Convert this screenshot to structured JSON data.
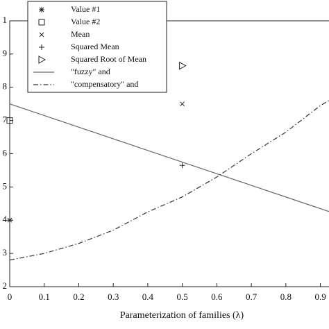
{
  "chart_data": {
    "type": "line",
    "x_label": "Parameterization of families (λ)",
    "xlim": [
      0,
      0.925
    ],
    "ylim": [
      0.2,
      1.0
    ],
    "xticks": [
      0,
      0.1,
      0.2,
      0.3,
      0.4,
      0.5,
      0.6,
      0.7,
      0.8,
      0.9
    ],
    "yticks": [
      {
        "value": 0.2,
        "label": "2"
      },
      {
        "value": 0.3,
        "label": "3"
      },
      {
        "value": 0.4,
        "label": "4"
      },
      {
        "value": 0.5,
        "label": "5"
      },
      {
        "value": 0.6,
        "label": "6"
      },
      {
        "value": 0.7,
        "label": "7"
      },
      {
        "value": 0.8,
        "label": "8"
      },
      {
        "value": 0.9,
        "label": "9"
      },
      1
    ],
    "series": [
      {
        "name": "Value #1",
        "marker": "star",
        "color": "#222",
        "x": [
          0
        ],
        "values": [
          0.4
        ]
      },
      {
        "name": "Value #2",
        "marker": "square",
        "color": "#222",
        "x": [
          0
        ],
        "values": [
          0.7
        ]
      },
      {
        "name": "Mean",
        "marker": "x",
        "color": "#222",
        "x": [
          0.5
        ],
        "values": [
          0.75
        ]
      },
      {
        "name": "Squared Mean",
        "marker": "plus",
        "color": "#222",
        "x": [
          0.5
        ],
        "values": [
          0.565
        ]
      },
      {
        "name": "Squared Root of Mean",
        "marker": "triangle-right",
        "color": "#222",
        "x": [
          0.5
        ],
        "values": [
          0.865
        ]
      },
      {
        "name": "\"fuzzy\" and",
        "style": "solid",
        "color": "#666",
        "x": [
          0,
          0.925
        ],
        "values": [
          0.75,
          0.426
        ]
      },
      {
        "name": "\"compensatory\" and",
        "style": "dashdot",
        "color": "#333",
        "x": [
          0,
          0.1,
          0.2,
          0.3,
          0.4,
          0.5,
          0.6,
          0.7,
          0.8,
          0.9,
          0.925
        ],
        "values": [
          0.28,
          0.3,
          0.33,
          0.37,
          0.425,
          0.47,
          0.53,
          0.6,
          0.665,
          0.745,
          0.76
        ]
      }
    ]
  }
}
